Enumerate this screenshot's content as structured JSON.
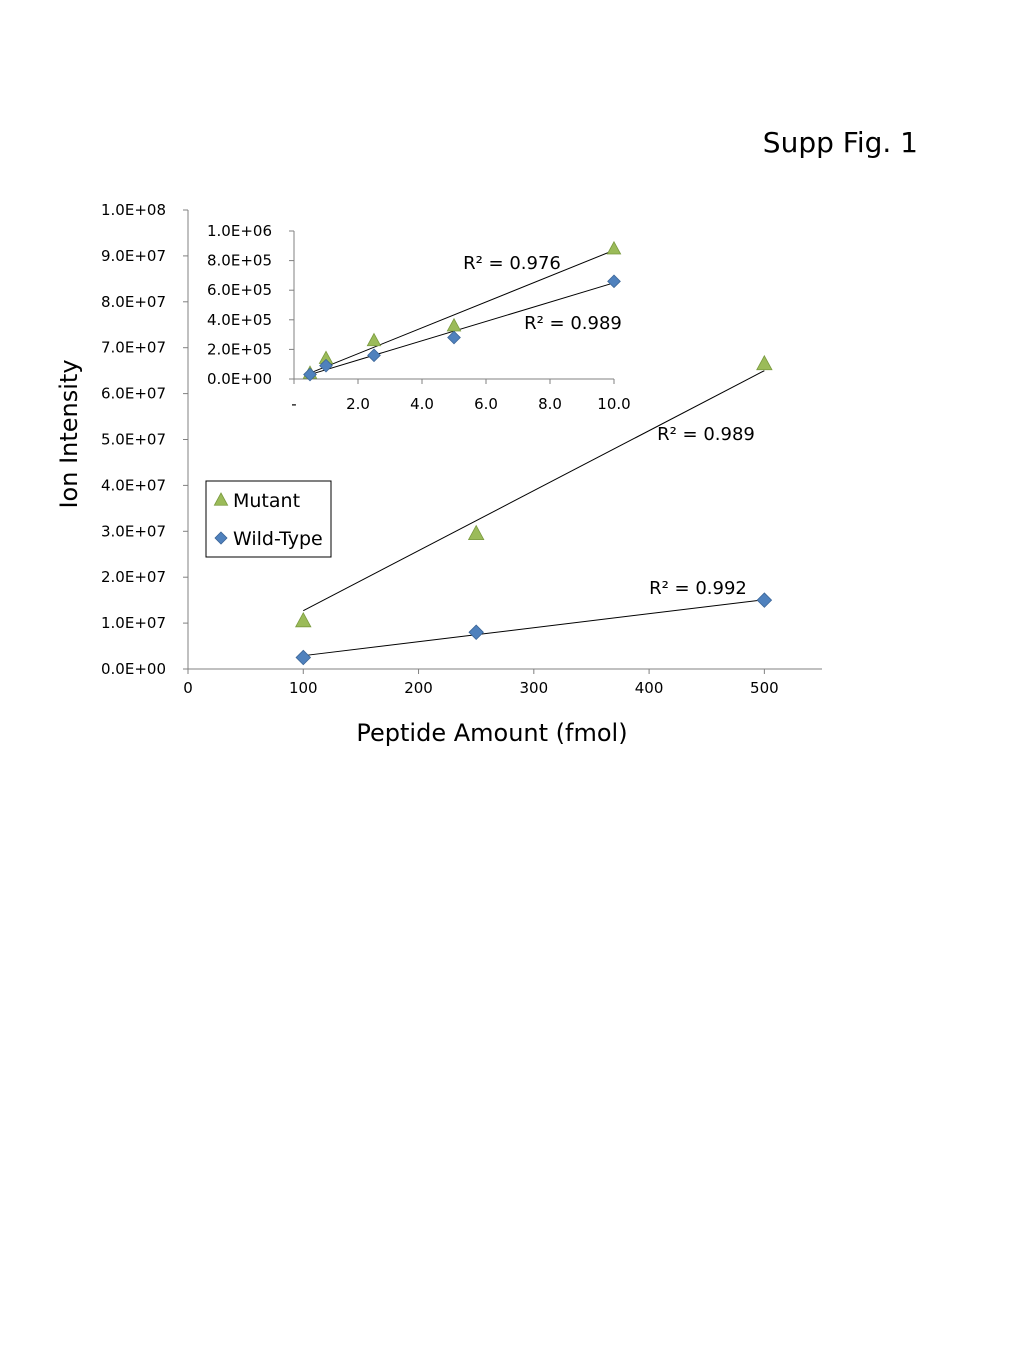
{
  "figure_label": "Supp Fig. 1",
  "colors": {
    "mutant": "#9BBB59",
    "wild_type": "#4F81BD",
    "axis": "#808080",
    "fit": "#000000"
  },
  "chart_data": [
    {
      "id": "main",
      "type": "scatter",
      "xlabel": "Peptide Amount (fmol)",
      "ylabel": "Ion Intensity",
      "xlim": [
        0,
        550
      ],
      "ylim": [
        0,
        100000000
      ],
      "xticks": [
        "0",
        "100",
        "200",
        "300",
        "400",
        "500"
      ],
      "xtick_values": [
        0,
        100,
        200,
        300,
        400,
        500
      ],
      "yticks": [
        "0.0E+00",
        "1.0E+07",
        "2.0E+07",
        "3.0E+07",
        "4.0E+07",
        "5.0E+07",
        "6.0E+07",
        "7.0E+07",
        "8.0E+07",
        "9.0E+07",
        "1.0E+08"
      ],
      "ytick_values": [
        0,
        10000000,
        20000000,
        30000000,
        40000000,
        50000000,
        60000000,
        70000000,
        80000000,
        90000000,
        100000000
      ],
      "legend": {
        "placement": "center-left",
        "entries": [
          "Mutant",
          "Wild-Type"
        ]
      },
      "grid": false,
      "series": [
        {
          "name": "Mutant",
          "marker": "triangle",
          "x": [
            100,
            250,
            500
          ],
          "y": [
            10500000,
            29500000,
            66500000
          ],
          "fit": {
            "x": [
              100,
              500
            ],
            "y": [
              12700000,
              65000000
            ]
          },
          "r2": "R² = 0.989"
        },
        {
          "name": "Wild-Type",
          "marker": "diamond",
          "x": [
            100,
            250,
            500
          ],
          "y": [
            2500000,
            8000000,
            15000000
          ],
          "fit": {
            "x": [
              100,
              500
            ],
            "y": [
              2900000,
              15100000
            ]
          },
          "r2": "R² = 0.992"
        }
      ]
    },
    {
      "id": "inset",
      "type": "scatter",
      "xlim": [
        0,
        10
      ],
      "ylim": [
        0,
        1000000
      ],
      "xticks": [
        "-",
        "2.0",
        "4.0",
        "6.0",
        "8.0",
        "10.0"
      ],
      "xtick_values": [
        0,
        2,
        4,
        6,
        8,
        10
      ],
      "yticks": [
        "0.0E+00",
        "2.0E+05",
        "4.0E+05",
        "6.0E+05",
        "8.0E+05",
        "1.0E+06"
      ],
      "ytick_values": [
        0,
        200000,
        400000,
        600000,
        800000,
        1000000
      ],
      "grid": false,
      "series": [
        {
          "name": "Mutant",
          "marker": "triangle",
          "x": [
            0.5,
            1,
            2.5,
            5,
            10
          ],
          "y": [
            40000,
            140000,
            260000,
            360000,
            880000
          ],
          "fit": {
            "x": [
              0.5,
              10
            ],
            "y": [
              40000,
              870000
            ]
          },
          "r2": "R² = 0.976"
        },
        {
          "name": "Wild-Type",
          "marker": "diamond",
          "x": [
            0.5,
            1,
            2.5,
            5,
            10
          ],
          "y": [
            30000,
            90000,
            160000,
            280000,
            660000
          ],
          "fit": {
            "x": [
              0.5,
              10
            ],
            "y": [
              30000,
              650000
            ]
          },
          "r2": "R² = 0.989"
        }
      ]
    }
  ]
}
